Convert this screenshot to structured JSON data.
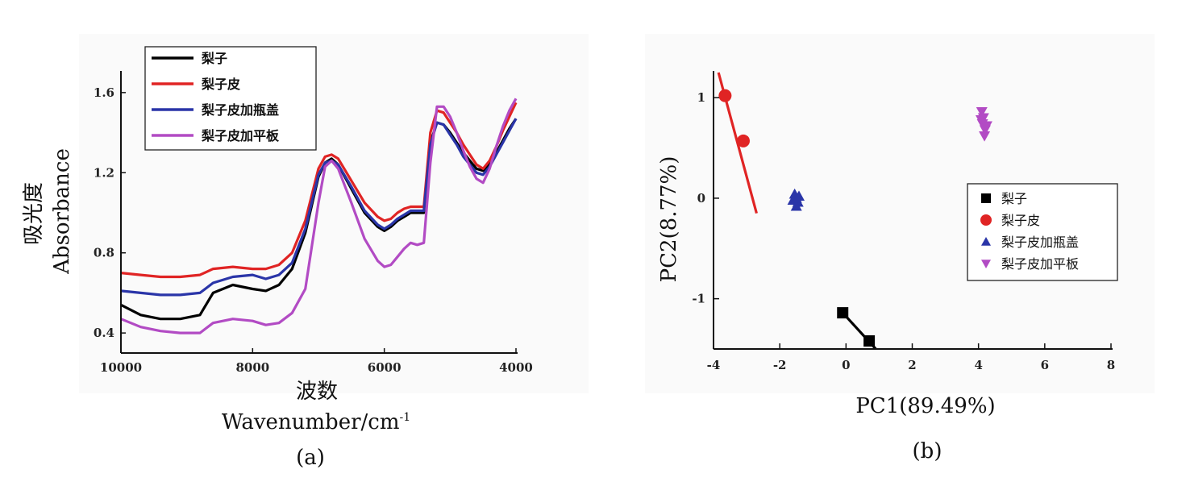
{
  "chart_data": [
    {
      "panel": "(a)",
      "type": "line",
      "xlabel_cn": "波数",
      "xlabel_en": "Wavenumber/cm",
      "xlabel_sup": "-1",
      "ylabel_cn": "吸光度",
      "ylabel_en": "Absorbance",
      "xlim": [
        10000,
        4000
      ],
      "ylim": [
        0.3,
        1.7
      ],
      "xticks": [
        10000,
        8000,
        6000,
        4000
      ],
      "yticks": [
        "0.4",
        "0.8",
        "1.2",
        "1.6"
      ],
      "legend_position": "top-left",
      "x": [
        10000,
        9700,
        9400,
        9100,
        8800,
        8600,
        8300,
        8000,
        7800,
        7600,
        7400,
        7200,
        7000,
        6900,
        6800,
        6700,
        6500,
        6300,
        6100,
        6000,
        5900,
        5800,
        5700,
        5600,
        5500,
        5400,
        5300,
        5200,
        5100,
        5000,
        4900,
        4800,
        4700,
        4600,
        4500,
        4400,
        4300,
        4200,
        4100,
        4000
      ],
      "series": [
        {
          "name": "梨子",
          "color": "#000000",
          "values": [
            0.54,
            0.49,
            0.47,
            0.47,
            0.49,
            0.6,
            0.64,
            0.62,
            0.61,
            0.64,
            0.72,
            0.9,
            1.18,
            1.25,
            1.27,
            1.24,
            1.12,
            1.0,
            0.93,
            0.91,
            0.93,
            0.96,
            0.98,
            1.0,
            1.0,
            1.0,
            1.35,
            1.45,
            1.44,
            1.4,
            1.35,
            1.3,
            1.26,
            1.22,
            1.21,
            1.24,
            1.3,
            1.36,
            1.42,
            1.47
          ]
        },
        {
          "name": "梨子皮",
          "color": "#e02424",
          "values": [
            0.7,
            0.69,
            0.68,
            0.68,
            0.69,
            0.72,
            0.73,
            0.72,
            0.72,
            0.74,
            0.8,
            0.96,
            1.22,
            1.28,
            1.29,
            1.27,
            1.16,
            1.05,
            0.98,
            0.96,
            0.97,
            1.0,
            1.02,
            1.03,
            1.03,
            1.03,
            1.4,
            1.51,
            1.5,
            1.45,
            1.4,
            1.34,
            1.29,
            1.24,
            1.22,
            1.26,
            1.33,
            1.41,
            1.48,
            1.55
          ]
        },
        {
          "name": "梨子皮加瓶盖",
          "color": "#2a35a8",
          "values": [
            0.61,
            0.6,
            0.59,
            0.59,
            0.6,
            0.65,
            0.68,
            0.69,
            0.67,
            0.69,
            0.75,
            0.92,
            1.19,
            1.25,
            1.26,
            1.24,
            1.13,
            1.01,
            0.94,
            0.92,
            0.94,
            0.97,
            0.99,
            1.01,
            1.01,
            1.01,
            1.34,
            1.45,
            1.44,
            1.39,
            1.34,
            1.28,
            1.24,
            1.2,
            1.19,
            1.23,
            1.29,
            1.35,
            1.41,
            1.47
          ]
        },
        {
          "name": "梨子皮加平板",
          "color": "#b24bc4",
          "values": [
            0.47,
            0.43,
            0.41,
            0.4,
            0.4,
            0.45,
            0.47,
            0.46,
            0.44,
            0.45,
            0.5,
            0.62,
            1.05,
            1.23,
            1.26,
            1.22,
            1.05,
            0.87,
            0.76,
            0.73,
            0.74,
            0.78,
            0.82,
            0.85,
            0.84,
            0.85,
            1.25,
            1.53,
            1.53,
            1.48,
            1.4,
            1.31,
            1.23,
            1.17,
            1.15,
            1.22,
            1.33,
            1.43,
            1.51,
            1.57
          ]
        }
      ]
    },
    {
      "panel": "(b)",
      "type": "scatter",
      "xlabel": "PC1(89.49%)",
      "ylabel": "PC2(8.77%)",
      "xlim": [
        -4,
        8
      ],
      "ylim": [
        -1.5,
        1.25
      ],
      "xticks": [
        "-4",
        "-2",
        "0",
        "2",
        "4",
        "6",
        "8"
      ],
      "yticks": [
        "-1",
        "0",
        "1"
      ],
      "legend_position": "right",
      "series": [
        {
          "name": "梨子",
          "color": "#000000",
          "marker": "square",
          "points": [
            [
              -0.1,
              -1.14
            ],
            [
              0.7,
              -1.42
            ]
          ],
          "line": [
            [
              -0.1,
              -1.14
            ],
            [
              0.9,
              -1.5
            ]
          ]
        },
        {
          "name": "梨子皮",
          "color": "#e02424",
          "marker": "circle",
          "points": [
            [
              -3.65,
              1.02
            ],
            [
              -3.1,
              0.57
            ]
          ],
          "line": [
            [
              -3.85,
              1.25
            ],
            [
              -2.7,
              -0.15
            ]
          ]
        },
        {
          "name": "梨子皮加瓶盖",
          "color": "#2a35a8",
          "marker": "triangle-up",
          "points": [
            [
              -1.55,
              0.04
            ],
            [
              -1.5,
              0.0
            ],
            [
              -1.45,
              -0.04
            ],
            [
              -1.5,
              -0.08
            ],
            [
              -1.6,
              -0.02
            ],
            [
              -1.42,
              0.02
            ]
          ]
        },
        {
          "name": "梨子皮加平板",
          "color": "#b24bc4",
          "marker": "triangle-down",
          "points": [
            [
              4.1,
              0.86
            ],
            [
              4.15,
              0.8
            ],
            [
              4.12,
              0.74
            ],
            [
              4.2,
              0.68
            ],
            [
              4.18,
              0.62
            ],
            [
              4.08,
              0.78
            ],
            [
              4.25,
              0.72
            ]
          ]
        }
      ]
    }
  ]
}
